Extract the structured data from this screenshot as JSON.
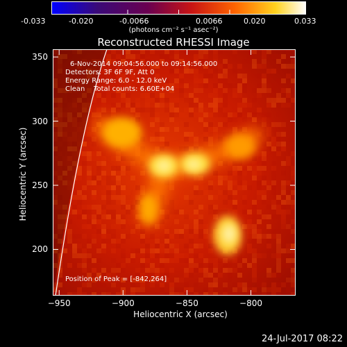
{
  "colorbar": {
    "ticks": [
      "-0.033",
      "-0.020",
      "-0.0066",
      "0.0066",
      "0.020",
      "0.033"
    ],
    "units": "(photons cm⁻² s⁻¹ asec⁻²)",
    "colors": [
      "#0000ff",
      "#3a0a78",
      "#6a0050",
      "#c81414",
      "#ff6400",
      "#ffd21e",
      "#ffffff"
    ]
  },
  "image": {
    "title": "Reconstructed RHESSI Image",
    "info": {
      "time": "6-Nov-2014 09:04:56.000 to 09:14:56.000",
      "detectors": "Detectors: 3F 6F 9F, Att 0",
      "energy": "Energy Range: 6.0 - 12.0 keV",
      "clean": "Clean    Total counts: 6.60E+04"
    },
    "peak": "Position of Peak = [-842,264]",
    "xlabel": "Heliocentric X (arcsec)",
    "ylabel": "Heliocentric Y (arcsec)",
    "x_ticks": [
      {
        "label": "−950",
        "value": -950
      },
      {
        "label": "−900",
        "value": -900
      },
      {
        "label": "−850",
        "value": -850
      },
      {
        "label": "−800",
        "value": -800
      }
    ],
    "y_ticks": [
      {
        "label": "200",
        "value": 200
      },
      {
        "label": "250",
        "value": 250
      },
      {
        "label": "300",
        "value": 300
      },
      {
        "label": "350",
        "value": 350
      }
    ],
    "xlim": [
      -955,
      -765
    ],
    "ylim": [
      164,
      356
    ]
  },
  "footer": {
    "date": "24-Jul-2017 08:22"
  }
}
